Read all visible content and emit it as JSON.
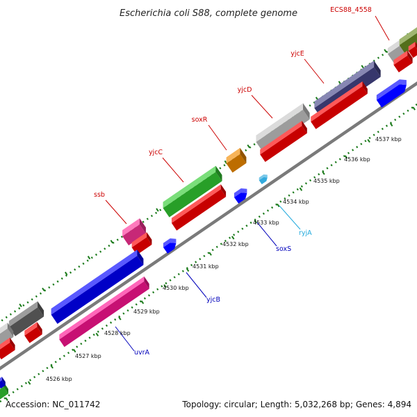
{
  "title": "Escherichia coli S88, complete genome",
  "footer": {
    "accession": "Accession: NC_011742",
    "summary": "Topology: circular; Length: 5,032,268 bp; Genes: 4,894"
  },
  "colors": {
    "backbone": "#7a7a7a",
    "ruler_dots": "#1a7a1a",
    "label_forward": "#cc0000",
    "label_reverse": "#0000bb",
    "label_rna": "#22aadd"
  },
  "ticks": [
    {
      "label": "4526 kbp"
    },
    {
      "label": "4527 kbp"
    },
    {
      "label": "4528 kbp"
    },
    {
      "label": "4529 kbp"
    },
    {
      "label": "4530 kbp"
    },
    {
      "label": "4531 kbp"
    },
    {
      "label": "4532 kbp"
    },
    {
      "label": "4533 kbp"
    },
    {
      "label": "4534 kbp"
    },
    {
      "label": "4535 kbp"
    },
    {
      "label": "4536 kbp"
    },
    {
      "label": "4537 kbp"
    }
  ],
  "gene_labels": [
    {
      "name": "ECS88_4558",
      "strand": "forward"
    },
    {
      "name": "yjcE",
      "strand": "forward"
    },
    {
      "name": "yjcD",
      "strand": "forward"
    },
    {
      "name": "soxR",
      "strand": "forward"
    },
    {
      "name": "yjcC",
      "strand": "forward"
    },
    {
      "name": "ssb",
      "strand": "forward"
    },
    {
      "name": "ryjA",
      "strand": "rna"
    },
    {
      "name": "soxS",
      "strand": "reverse"
    },
    {
      "name": "yjcB",
      "strand": "reverse"
    },
    {
      "name": "uvrA",
      "strand": "reverse"
    }
  ]
}
